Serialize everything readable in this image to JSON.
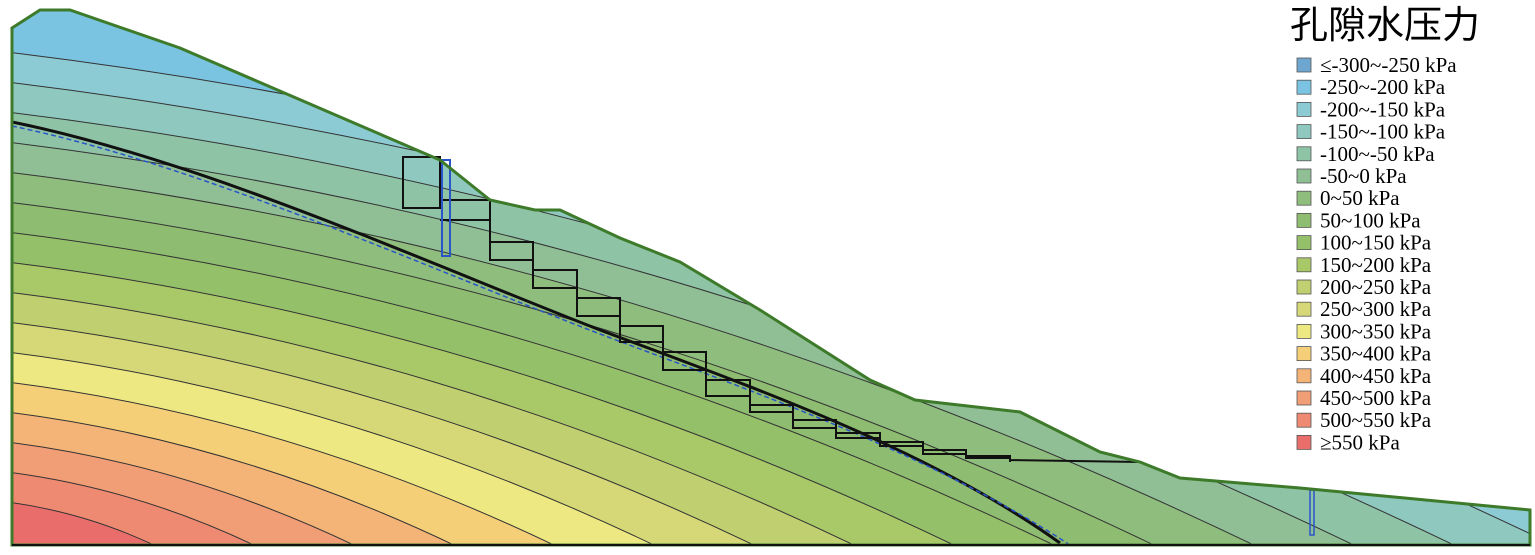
{
  "legend": {
    "title": "孔隙水压力",
    "items": [
      {
        "label": "≤-300~-250 kPa",
        "color": "#6fa6d0"
      },
      {
        "label": "-250~-200 kPa",
        "color": "#7ac4e2"
      },
      {
        "label": "-200~-150 kPa",
        "color": "#8ccbd3"
      },
      {
        "label": "-150~-100 kPa",
        "color": "#8ec8bf"
      },
      {
        "label": "-100~-50 kPa",
        "color": "#8fc3a6"
      },
      {
        "label": "-50~0 kPa",
        "color": "#90bf96"
      },
      {
        "label": "0~50 kPa",
        "color": "#8fbd7e"
      },
      {
        "label": "50~100 kPa",
        "color": "#8ebc70"
      },
      {
        "label": "100~150 kPa",
        "color": "#95c06a"
      },
      {
        "label": "150~200 kPa",
        "color": "#a9c868"
      },
      {
        "label": "200~250 kPa",
        "color": "#c0d070"
      },
      {
        "label": "250~300 kPa",
        "color": "#d6d878"
      },
      {
        "label": "300~350 kPa",
        "color": "#eee882"
      },
      {
        "label": "350~400 kPa",
        "color": "#f5cf78"
      },
      {
        "label": "400~450 kPa",
        "color": "#f4b478"
      },
      {
        "label": "450~500 kPa",
        "color": "#f19d76"
      },
      {
        "label": "500~550 kPa",
        "color": "#ee8a72"
      },
      {
        "label": "≥550 kPa",
        "color": "#e86d6b"
      }
    ]
  }
}
